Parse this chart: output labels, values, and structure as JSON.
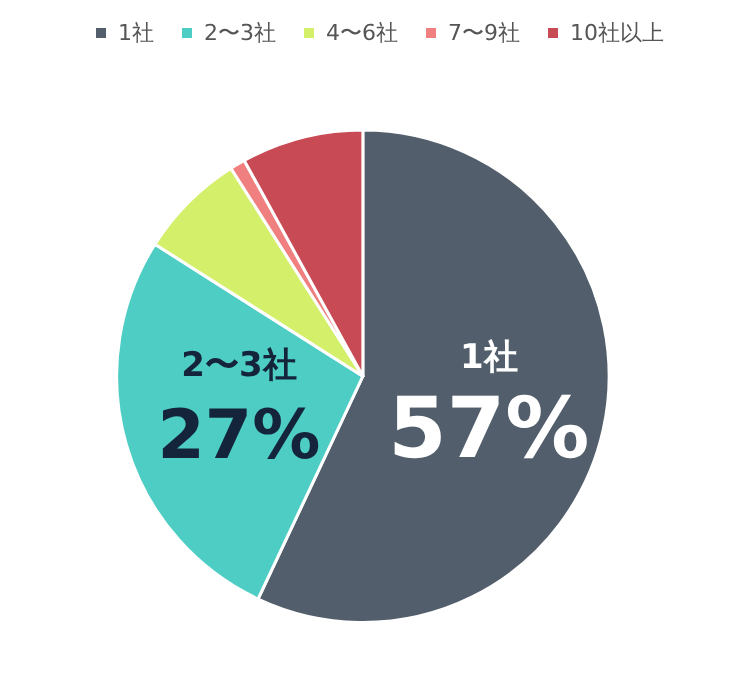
{
  "chart_data": {
    "type": "pie",
    "categories": [
      "1社",
      "2〜3社",
      "4〜6社",
      "7〜9社",
      "10社以上"
    ],
    "values": [
      57,
      27,
      7,
      1,
      8
    ],
    "colors": [
      "#525e6b",
      "#4ecdc4",
      "#d4f06a",
      "#f08080",
      "#c84a55"
    ],
    "value_labels": [
      "57%",
      "27%",
      null,
      null,
      null
    ],
    "legend": "top"
  }
}
